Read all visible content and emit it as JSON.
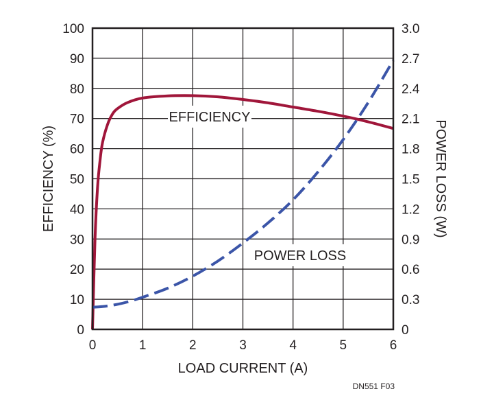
{
  "chart_data": {
    "type": "line",
    "title": "",
    "xlabel": "LOAD CURRENT (A)",
    "ylabel_left": "EFFICIENCY (%)",
    "ylabel_right": "POWER LOSS (W)",
    "xlim": [
      0,
      6
    ],
    "ylim_left": [
      0,
      100
    ],
    "ylim_right": [
      0,
      3.0
    ],
    "x_ticks": [
      "0",
      "1",
      "2",
      "3",
      "4",
      "5",
      "6"
    ],
    "y_left_ticks": [
      "0",
      "10",
      "20",
      "30",
      "40",
      "50",
      "60",
      "70",
      "80",
      "90",
      "100"
    ],
    "y_right_ticks": [
      "0",
      "0.3",
      "0.6",
      "0.9",
      "1.2",
      "1.5",
      "1.8",
      "2.1",
      "2.4",
      "2.7",
      "3.0"
    ],
    "grid": true,
    "series": [
      {
        "name": "EFFICIENCY",
        "axis": "left",
        "color": "#a0163a",
        "style": "solid",
        "x": [
          0,
          0.05,
          0.1,
          0.15,
          0.2,
          0.3,
          0.4,
          0.5,
          0.7,
          1.0,
          1.5,
          2.0,
          2.5,
          3.0,
          3.5,
          4.0,
          4.5,
          5.0,
          5.5,
          6.0
        ],
        "values": [
          0,
          30,
          47,
          56,
          62,
          68,
          71.5,
          73.3,
          75.3,
          76.8,
          77.5,
          77.6,
          77.2,
          76.3,
          75.2,
          73.8,
          72.4,
          70.8,
          68.9,
          66.7
        ]
      },
      {
        "name": "POWER LOSS",
        "axis": "right",
        "color": "#3b55a8",
        "style": "dashed",
        "x": [
          0,
          0.25,
          0.5,
          0.75,
          1.0,
          1.5,
          2.0,
          2.5,
          3.0,
          3.5,
          4.0,
          4.5,
          5.0,
          5.5,
          6.0
        ],
        "values": [
          0.22,
          0.23,
          0.25,
          0.28,
          0.32,
          0.41,
          0.53,
          0.68,
          0.86,
          1.06,
          1.29,
          1.57,
          1.89,
          2.26,
          2.68
        ]
      }
    ],
    "annotations": [
      {
        "text": "EFFICIENCY",
        "series": "EFFICIENCY"
      },
      {
        "text": "POWER LOSS",
        "series": "POWER LOSS"
      }
    ],
    "figure_id": "DN551 F03"
  }
}
